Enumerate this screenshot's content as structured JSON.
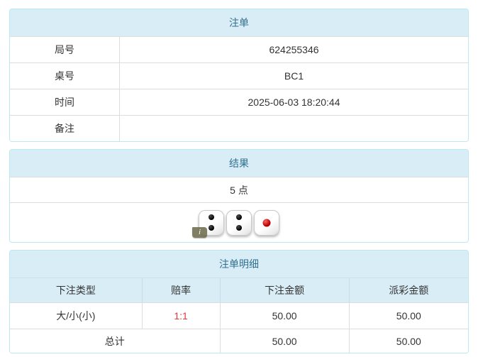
{
  "colors": {
    "header_bg": "#d9edf7",
    "header_text": "#31708f",
    "panel_border": "#bce8f1",
    "divider": "#dddddd",
    "body_text": "#333333",
    "odds_red": "#e4393c"
  },
  "bet_order": {
    "title": "注单",
    "rows": [
      {
        "label": "局号",
        "value": "624255346"
      },
      {
        "label": "桌号",
        "value": "BC1"
      },
      {
        "label": "时间",
        "value": "2025-06-03 18:20:44"
      },
      {
        "label": "备注",
        "value": ""
      }
    ]
  },
  "result": {
    "title": "结果",
    "points": "5 点",
    "dice": [
      {
        "value": 2,
        "color": "black"
      },
      {
        "value": 2,
        "color": "black"
      },
      {
        "value": 1,
        "color": "red"
      }
    ],
    "info_icon_glyph": "i"
  },
  "bet_details": {
    "title": "注单明细",
    "columns": [
      "下注类型",
      "赔率",
      "下注金额",
      "派彩金额"
    ],
    "rows": [
      {
        "bet_type": "大/小(小)",
        "odds": "1:1",
        "bet_amount": "50.00",
        "payout_amount": "50.00"
      }
    ],
    "total": {
      "label": "总计",
      "bet_amount": "50.00",
      "payout_amount": "50.00"
    }
  }
}
